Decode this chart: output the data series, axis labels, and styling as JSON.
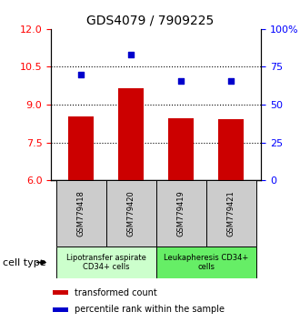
{
  "title": "GDS4079 / 7909225",
  "samples": [
    "GSM779418",
    "GSM779420",
    "GSM779419",
    "GSM779421"
  ],
  "bar_values": [
    8.55,
    9.65,
    8.45,
    8.42
  ],
  "scatter_values": [
    10.2,
    11.0,
    9.95,
    9.95
  ],
  "bar_color": "#cc0000",
  "scatter_color": "#0000cc",
  "ylim_left": [
    6,
    12
  ],
  "ylim_right": [
    0,
    100
  ],
  "yticks_left": [
    6,
    7.5,
    9,
    10.5,
    12
  ],
  "yticks_right": [
    0,
    25,
    50,
    75,
    100
  ],
  "ytick_labels_right": [
    "0",
    "25",
    "50",
    "75",
    "100%"
  ],
  "dotted_lines": [
    7.5,
    9.0,
    10.5
  ],
  "groups": [
    {
      "label": "Lipotransfer aspirate\nCD34+ cells",
      "samples": [
        0,
        1
      ],
      "color": "#ccffcc"
    },
    {
      "label": "Leukapheresis CD34+\ncells",
      "samples": [
        2,
        3
      ],
      "color": "#66ee66"
    }
  ],
  "group_sample_color": "#cccccc",
  "cell_type_label": "cell type",
  "legend_bar_label": "transformed count",
  "legend_scatter_label": "percentile rank within the sample",
  "bar_bottom": 6.0,
  "title_fontsize": 10,
  "tick_fontsize": 8,
  "sample_fontsize": 6,
  "group_fontsize": 6,
  "legend_fontsize": 7
}
